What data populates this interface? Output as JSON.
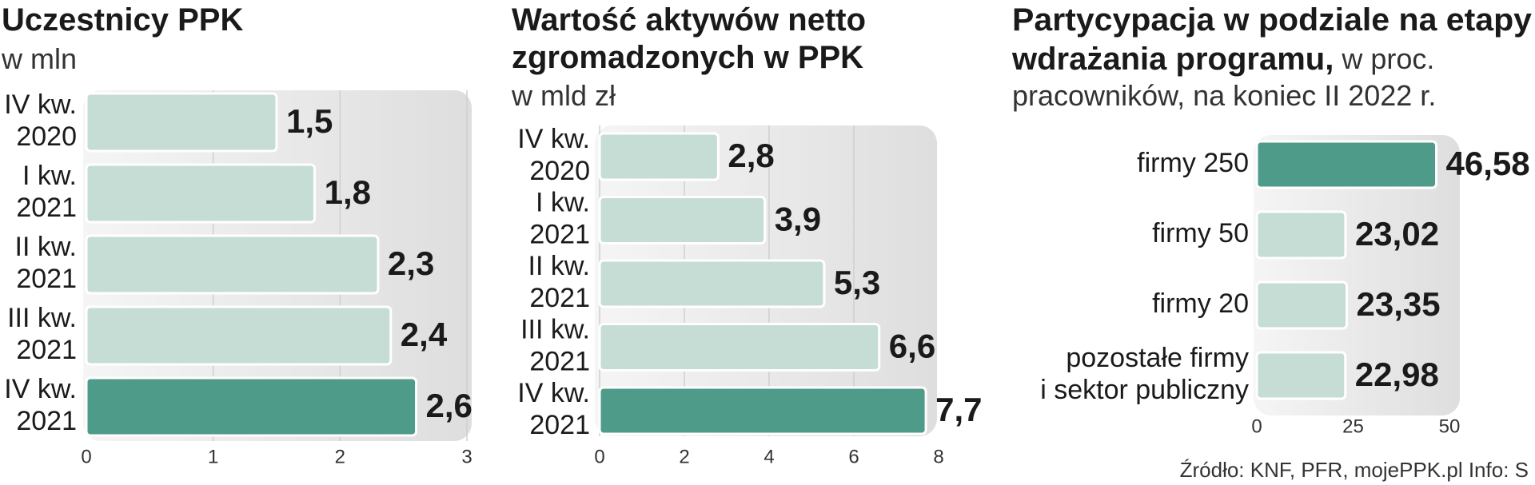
{
  "chart_data": [
    {
      "type": "bar",
      "orientation": "horizontal",
      "title": "Uczestnicy PPK",
      "subtitle": "w mln",
      "categories": [
        [
          "IV kw.",
          "2020"
        ],
        [
          "I kw.",
          "2021"
        ],
        [
          "II kw.",
          "2021"
        ],
        [
          "III kw.",
          "2021"
        ],
        [
          "IV kw.",
          "2021"
        ]
      ],
      "values": [
        1.5,
        1.8,
        2.3,
        2.4,
        2.6
      ],
      "value_labels": [
        "1,5",
        "1,8",
        "2,3",
        "2,4",
        "2,6"
      ],
      "colors": [
        "#c6ddd5",
        "#c6ddd5",
        "#c6ddd5",
        "#c6ddd5",
        "#4f9b8a"
      ],
      "xlim": [
        0,
        3
      ],
      "xticks": [
        0,
        1,
        2,
        3
      ],
      "grid": true
    },
    {
      "type": "bar",
      "orientation": "horizontal",
      "title": [
        "Wartość aktywów netto",
        "zgromadzonych w PPK"
      ],
      "subtitle": "w mld zł",
      "categories": [
        [
          "IV kw.",
          "2020"
        ],
        [
          "I kw.",
          "2021"
        ],
        [
          "II kw.",
          "2021"
        ],
        [
          "III kw.",
          "2021"
        ],
        [
          "IV kw.",
          "2021"
        ]
      ],
      "values": [
        2.8,
        3.9,
        5.3,
        6.6,
        7.7
      ],
      "value_labels": [
        "2,8",
        "3,9",
        "5,3",
        "6,6",
        "7,7"
      ],
      "colors": [
        "#c6ddd5",
        "#c6ddd5",
        "#c6ddd5",
        "#c6ddd5",
        "#4f9b8a"
      ],
      "xlim": [
        0,
        8
      ],
      "xticks": [
        0,
        2,
        4,
        6,
        8
      ],
      "grid": true
    },
    {
      "type": "bar",
      "orientation": "horizontal",
      "title": [
        "Partycypacja w podziale na etapy",
        "wdrażania programu,"
      ],
      "subtitle": [
        "w proc.",
        "pracowników, na koniec II 2022 r."
      ],
      "categories": [
        [
          "firmy 250"
        ],
        [
          "firmy 50"
        ],
        [
          "firmy 20"
        ],
        [
          "pozostałe firmy",
          "i sektor publiczny"
        ]
      ],
      "values": [
        46.58,
        23.02,
        23.35,
        22.98
      ],
      "value_labels": [
        "46,58",
        "23,02",
        "23,35",
        "22,98"
      ],
      "colors": [
        "#4f9b8a",
        "#c6ddd5",
        "#c6ddd5",
        "#c6ddd5"
      ],
      "xlim": [
        0,
        50
      ],
      "xticks": [
        0,
        25,
        50
      ],
      "grid": false
    }
  ],
  "source": "Źródło: KNF, PFR, mojePPK.pl  Info: S"
}
